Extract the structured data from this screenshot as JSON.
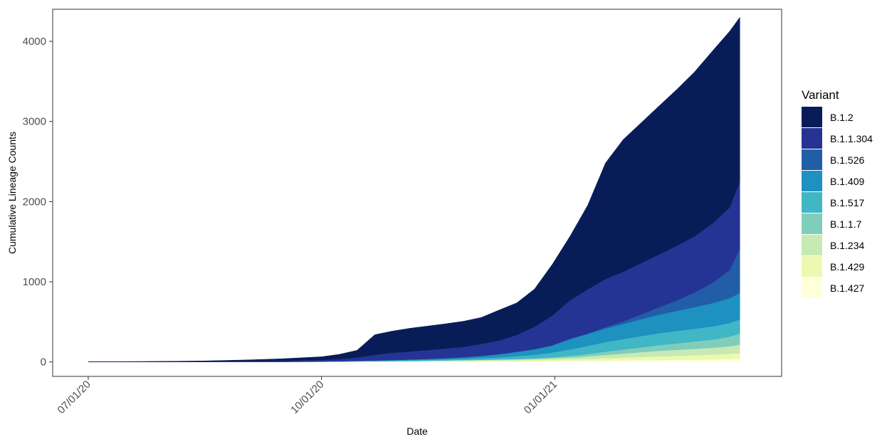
{
  "chart_data": {
    "type": "area",
    "stacked": true,
    "xlabel": "Date",
    "ylabel": "Cumulative Lineage Counts",
    "x_range": [
      "2020-07-01",
      "2021-03-18"
    ],
    "ylim": [
      -180,
      4400
    ],
    "x_ticks": [
      {
        "date": "2020-07-01",
        "label": "07/01/20"
      },
      {
        "date": "2020-10-01",
        "label": "10/01/20"
      },
      {
        "date": "2021-01-01",
        "label": "01/01/21"
      }
    ],
    "y_ticks": [
      {
        "value": 0,
        "label": "0"
      },
      {
        "value": 1000,
        "label": "1000"
      },
      {
        "value": 2000,
        "label": "2000"
      },
      {
        "value": 3000,
        "label": "3000"
      },
      {
        "value": 4000,
        "label": "4000"
      }
    ],
    "grid": false,
    "legend": {
      "title": "Variant",
      "position": "right"
    },
    "x": [
      "2020-07-01",
      "2020-07-15",
      "2020-08-01",
      "2020-08-15",
      "2020-09-01",
      "2020-09-15",
      "2020-10-01",
      "2020-10-08",
      "2020-10-15",
      "2020-10-22",
      "2020-10-29",
      "2020-11-05",
      "2020-11-12",
      "2020-11-19",
      "2020-11-26",
      "2020-12-03",
      "2020-12-10",
      "2020-12-17",
      "2020-12-24",
      "2020-12-31",
      "2021-01-07",
      "2021-01-14",
      "2021-01-21",
      "2021-01-28",
      "2021-02-04",
      "2021-02-11",
      "2021-02-18",
      "2021-02-25",
      "2021-03-04",
      "2021-03-11",
      "2021-03-15"
    ],
    "series": [
      {
        "name": "B.1.427",
        "color": "#ffffd9",
        "values": [
          0,
          0,
          0,
          0,
          0,
          0,
          1,
          1,
          2,
          2,
          3,
          3,
          4,
          5,
          6,
          7,
          8,
          9,
          10,
          12,
          14,
          16,
          18,
          20,
          22,
          24,
          26,
          29,
          32,
          36,
          40
        ]
      },
      {
        "name": "B.1.429",
        "color": "#edf8b1",
        "values": [
          0,
          0,
          0,
          0,
          0,
          0,
          1,
          1,
          2,
          3,
          3,
          4,
          5,
          6,
          7,
          8,
          10,
          12,
          14,
          17,
          20,
          24,
          30,
          35,
          40,
          45,
          50,
          55,
          60,
          65,
          70
        ]
      },
      {
        "name": "B.1.234",
        "color": "#c7e9b4",
        "values": [
          0,
          0,
          0,
          0,
          1,
          1,
          2,
          3,
          4,
          5,
          6,
          7,
          8,
          9,
          10,
          11,
          12,
          13,
          15,
          18,
          22,
          30,
          40,
          50,
          60,
          70,
          75,
          80,
          85,
          95,
          105
        ]
      },
      {
        "name": "B.1.1.7",
        "color": "#7fcdbb",
        "values": [
          0,
          0,
          0,
          0,
          0,
          0,
          0,
          0,
          0,
          0,
          0,
          0,
          0,
          0,
          0,
          1,
          2,
          3,
          5,
          10,
          20,
          30,
          40,
          50,
          60,
          70,
          80,
          90,
          100,
          120,
          140
        ]
      },
      {
        "name": "B.1.517",
        "color": "#41b6c4",
        "values": [
          0,
          0,
          0,
          0,
          0,
          0,
          1,
          2,
          3,
          4,
          5,
          7,
          9,
          12,
          15,
          20,
          25,
          35,
          45,
          60,
          80,
          100,
          120,
          130,
          140,
          150,
          155,
          160,
          165,
          170,
          175
        ]
      },
      {
        "name": "B.1.409",
        "color": "#1d91c0",
        "values": [
          0,
          0,
          0,
          0,
          1,
          1,
          2,
          3,
          4,
          6,
          8,
          10,
          12,
          15,
          20,
          28,
          40,
          55,
          70,
          90,
          130,
          150,
          170,
          190,
          210,
          230,
          250,
          270,
          290,
          310,
          330
        ]
      },
      {
        "name": "B.1.526",
        "color": "#225ea8",
        "values": [
          0,
          0,
          0,
          0,
          0,
          0,
          0,
          0,
          0,
          0,
          0,
          0,
          0,
          0,
          0,
          0,
          0,
          0,
          0,
          0,
          2,
          5,
          15,
          30,
          60,
          90,
          130,
          180,
          250,
          350,
          550
        ]
      },
      {
        "name": "B.1.1.304",
        "color": "#253494",
        "values": [
          1,
          2,
          3,
          5,
          8,
          12,
          18,
          25,
          40,
          70,
          90,
          100,
          110,
          120,
          130,
          150,
          170,
          210,
          280,
          370,
          480,
          550,
          600,
          620,
          640,
          660,
          680,
          700,
          740,
          780,
          840
        ]
      },
      {
        "name": "B.1.2",
        "color": "#081d58",
        "values": [
          2,
          3,
          5,
          8,
          15,
          25,
          40,
          60,
          90,
          250,
          270,
          290,
          300,
          310,
          320,
          330,
          380,
          400,
          470,
          640,
          800,
          1050,
          1450,
          1650,
          1750,
          1850,
          1950,
          2050,
          2150,
          2200,
          2050
        ]
      }
    ]
  }
}
